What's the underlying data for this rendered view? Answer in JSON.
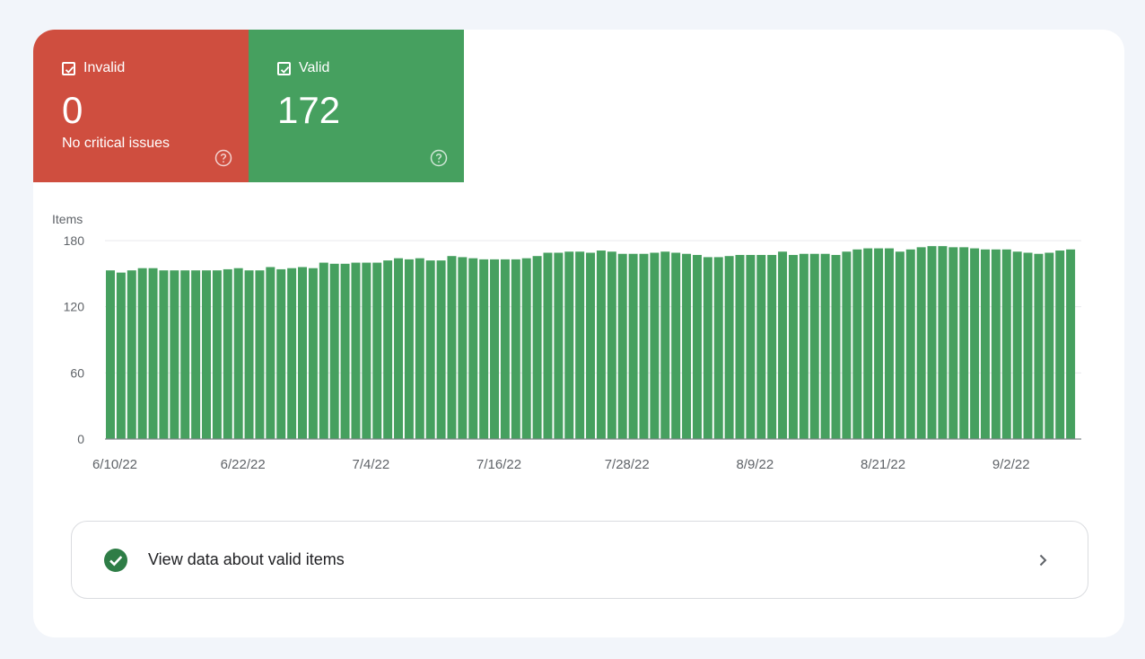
{
  "tiles": {
    "invalid": {
      "label": "Invalid",
      "value": "0",
      "subtitle": "No critical issues",
      "color": "#cf4e3f",
      "icon": "help-circle-icon"
    },
    "valid": {
      "label": "Valid",
      "value": "172",
      "subtitle": "",
      "color": "#46a05f",
      "icon": "help-circle-icon"
    }
  },
  "chart_data": {
    "type": "bar",
    "ylabel": "Items",
    "ylim": [
      0,
      180
    ],
    "yticks": [
      0,
      60,
      120,
      180
    ],
    "grid": true,
    "color": "#46a05f",
    "xtick_labels": [
      "6/10/22",
      "6/22/22",
      "7/4/22",
      "7/16/22",
      "7/28/22",
      "8/9/22",
      "8/21/22",
      "9/2/22"
    ],
    "values": [
      153,
      151,
      153,
      155,
      155,
      153,
      153,
      153,
      153,
      153,
      153,
      154,
      155,
      153,
      153,
      156,
      154,
      155,
      156,
      155,
      160,
      159,
      159,
      160,
      160,
      160,
      162,
      164,
      163,
      164,
      162,
      162,
      166,
      165,
      164,
      163,
      163,
      163,
      163,
      164,
      166,
      169,
      169,
      170,
      170,
      169,
      171,
      170,
      168,
      168,
      168,
      169,
      170,
      169,
      168,
      167,
      165,
      165,
      166,
      167,
      167,
      167,
      167,
      170,
      167,
      168,
      168,
      168,
      167,
      170,
      172,
      173,
      173,
      173,
      170,
      172,
      174,
      175,
      175,
      174,
      174,
      173,
      172,
      172,
      172,
      170,
      169,
      168,
      169,
      171,
      172
    ]
  },
  "link": {
    "label": "View data about valid items",
    "icon": "check-circle-icon",
    "chevron": "chevron-right-icon"
  }
}
